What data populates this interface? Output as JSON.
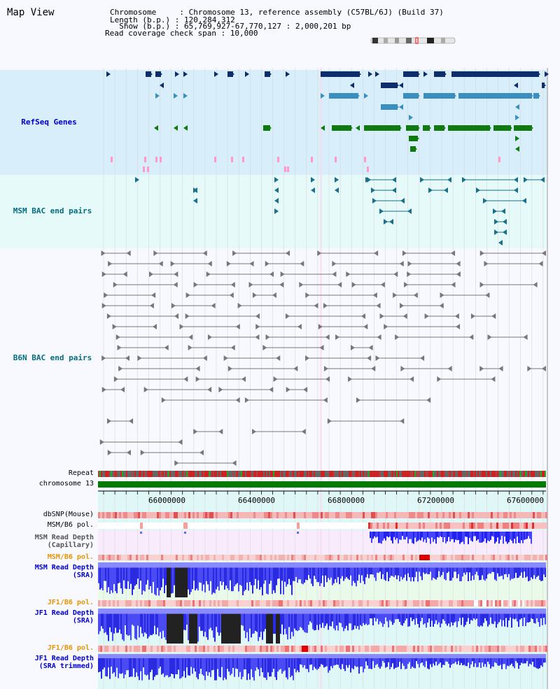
{
  "page": {
    "title": "Map View"
  },
  "info": {
    "line1": "Chromosome     : Chromosome 13, reference assembly (C57BL/6J) (Build 37)",
    "line2": "Length (b.p.) : 120,284,312",
    "line3": "  Show (b.p.) : 65,769,927-67,770,127 : 2,000,201 bp",
    "line4": "Read coverage check span : 10,000"
  },
  "tracks": {
    "refseq": "RefSeq Genes",
    "msm_bac": "MSM BAC end pairs",
    "b6n_bac": "B6N BAC end pairs",
    "repeat": "Repeat",
    "chromosome": "chromosome 13",
    "dbsnp": "dbSNP(Mouse)",
    "msm_b6_pol": "MSM/B6 pol.",
    "msm_read_cap": "MSM Read Depth\n(Capillary)",
    "msm_b6_pol2": "MSM/B6 pol.",
    "msm_read_sra": "MSM Read Depth\n(SRA)",
    "jf1_b6_pol": "JF1/B6 pol.",
    "jf1_read_sra": "JF1 Read Depth\n(SRA)",
    "jf1_b6_pol2": "JF1/B6 pol.",
    "jf1_read_trim": "JF1 Read Depth\n(SRA trimmed)"
  },
  "axis": {
    "ticks": [
      "66000000",
      "66400000",
      "66800000",
      "67200000",
      "67600000"
    ]
  },
  "colors": {
    "refseq_bg": "#d8eefa",
    "bac_bg": "#e6fafa",
    "navy": "#0d2d6b",
    "mid_blue": "#3b8fc0",
    "green": "#0f7a0f",
    "teal": "#1a6f8a",
    "gray": "#777777",
    "label_blue": "#0000cc",
    "label_teal": "#006e80",
    "label_orange": "#e69500"
  }
}
